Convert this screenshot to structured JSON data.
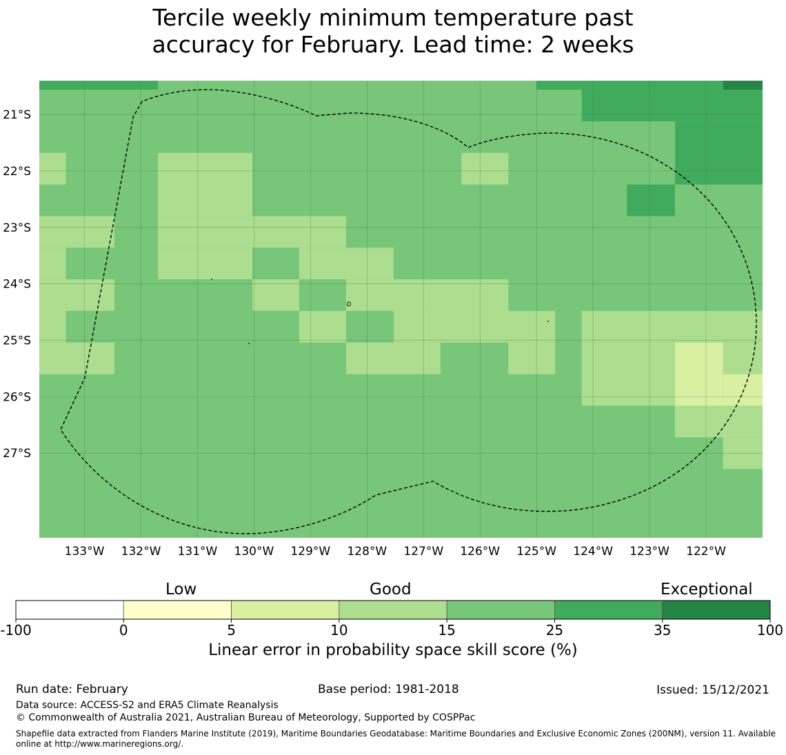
{
  "title": {
    "line1": "Tercile weekly minimum temperature past",
    "line2": "accuracy for February. Lead time: 2 weeks"
  },
  "map": {
    "lon_labels": [
      "133°W",
      "132°W",
      "131°W",
      "130°W",
      "129°W",
      "128°W",
      "127°W",
      "126°W",
      "125°W",
      "124°W",
      "123°W",
      "122°W"
    ],
    "lat_labels": [
      "21°S",
      "22°S",
      "23°S",
      "24°S",
      "25°S",
      "26°S",
      "27°S"
    ],
    "lon_values": [
      -133,
      -132,
      -131,
      -130,
      -129,
      -128,
      -127,
      -126,
      -125,
      -124,
      -123,
      -122
    ],
    "lat_values": [
      -21,
      -22,
      -23,
      -24,
      -25,
      -26,
      -27
    ],
    "lon_range": [
      -133.8,
      -121.0
    ],
    "lat_range": [
      -28.5,
      -20.4
    ],
    "grid": true,
    "boundary": "dashed EEZ outline",
    "level_colors": {
      "0": "#ffffcc",
      "1": "#d9f0a3",
      "2": "#addd8e",
      "3": "#78c679",
      "4": "#41ab5d",
      "5": "#238443"
    },
    "cells": [
      {
        "lon": [
          -133.8,
          -131.7
        ],
        "lat": [
          -20.56,
          -20.4
        ],
        "level": 4
      },
      {
        "lon": [
          -125.0,
          -121.7
        ],
        "lat": [
          -20.56,
          -20.4
        ],
        "level": 4
      },
      {
        "lon": [
          -121.7,
          -121.0
        ],
        "lat": [
          -20.56,
          -20.4
        ],
        "level": 5
      },
      {
        "lon": [
          -124.2,
          -121.0
        ],
        "lat": [
          -21.12,
          -20.56
        ],
        "level": 4
      },
      {
        "lon": [
          -122.55,
          -121.0
        ],
        "lat": [
          -22.24,
          -21.12
        ],
        "level": 4
      },
      {
        "lon": [
          -123.4,
          -122.55
        ],
        "lat": [
          -22.8,
          -22.24
        ],
        "level": 4
      },
      {
        "lon": [
          -133.8,
          -133.33
        ],
        "lat": [
          -22.24,
          -21.68
        ],
        "level": 2
      },
      {
        "lon": [
          -131.7,
          -130.03
        ],
        "lat": [
          -22.8,
          -21.68
        ],
        "level": 2
      },
      {
        "lon": [
          -126.33,
          -125.5
        ],
        "lat": [
          -22.24,
          -21.68
        ],
        "level": 2
      },
      {
        "lon": [
          -133.8,
          -132.47
        ],
        "lat": [
          -23.36,
          -22.8
        ],
        "level": 2
      },
      {
        "lon": [
          -131.7,
          -128.37
        ],
        "lat": [
          -23.36,
          -22.8
        ],
        "level": 2
      },
      {
        "lon": [
          -133.8,
          -133.33
        ],
        "lat": [
          -23.92,
          -23.36
        ],
        "level": 2
      },
      {
        "lon": [
          -131.7,
          -130.03
        ],
        "lat": [
          -23.92,
          -23.36
        ],
        "level": 2
      },
      {
        "lon": [
          -129.2,
          -127.53
        ],
        "lat": [
          -23.92,
          -23.36
        ],
        "level": 2
      },
      {
        "lon": [
          -133.8,
          -132.47
        ],
        "lat": [
          -24.48,
          -23.92
        ],
        "level": 2
      },
      {
        "lon": [
          -130.03,
          -129.2
        ],
        "lat": [
          -24.48,
          -23.92
        ],
        "level": 2
      },
      {
        "lon": [
          -128.37,
          -125.5
        ],
        "lat": [
          -24.48,
          -23.92
        ],
        "level": 2
      },
      {
        "lon": [
          -133.8,
          -133.33
        ],
        "lat": [
          -25.04,
          -24.48
        ],
        "level": 2
      },
      {
        "lon": [
          -129.2,
          -128.37
        ],
        "lat": [
          -25.04,
          -24.48
        ],
        "level": 2
      },
      {
        "lon": [
          -127.53,
          -124.67
        ],
        "lat": [
          -25.04,
          -24.48
        ],
        "level": 2
      },
      {
        "lon": [
          -124.2,
          -121.0
        ],
        "lat": [
          -25.04,
          -24.48
        ],
        "level": 2
      },
      {
        "lon": [
          -133.8,
          -132.47
        ],
        "lat": [
          -25.6,
          -25.04
        ],
        "level": 2
      },
      {
        "lon": [
          -128.37,
          -126.7
        ],
        "lat": [
          -25.6,
          -25.04
        ],
        "level": 2
      },
      {
        "lon": [
          -125.5,
          -124.67
        ],
        "lat": [
          -25.6,
          -25.04
        ],
        "level": 2
      },
      {
        "lon": [
          -124.2,
          -122.55
        ],
        "lat": [
          -26.16,
          -25.04
        ],
        "level": 2
      },
      {
        "lon": [
          -122.55,
          -121.7
        ],
        "lat": [
          -26.16,
          -25.04
        ],
        "level": 1
      },
      {
        "lon": [
          -121.7,
          -121.0
        ],
        "lat": [
          -25.6,
          -25.04
        ],
        "level": 2
      },
      {
        "lon": [
          -121.7,
          -121.0
        ],
        "lat": [
          -26.16,
          -25.6
        ],
        "level": 1
      },
      {
        "lon": [
          -122.55,
          -121.0
        ],
        "lat": [
          -26.72,
          -26.16
        ],
        "level": 2
      },
      {
        "lon": [
          -121.7,
          -121.0
        ],
        "lat": [
          -27.28,
          -26.72
        ],
        "level": 2
      }
    ]
  },
  "colorbar": {
    "categories": [
      "Low",
      "Good",
      "Exceptional"
    ],
    "ticks": [
      "-100",
      "0",
      "5",
      "10",
      "15",
      "25",
      "35",
      "100"
    ],
    "colors": [
      "#ffffff",
      "#ffffcc",
      "#d9f0a3",
      "#addd8e",
      "#78c679",
      "#41ab5d",
      "#238443"
    ],
    "title": "Linear error in probability space skill score (%)"
  },
  "footer": {
    "run_date": "Run date: February",
    "base_period": "Base period: 1981-2018",
    "issued": "Issued: 15/12/2021",
    "data_source": "Data source: ACCESS-S2 and ERA5 Climate Reanalysis",
    "copyright": "© Commonwealth of Australia 2021, Australian Bureau of Meteorology, Supported by COSPPac",
    "shapefile_line1": "Shapefile data extracted from Flanders Marine Institute (2019), Maritime Boundaries Geodatabase: Maritime Boundaries and Exclusive Economic Zones (200NM), version 11. Available",
    "shapefile_line2": "online at http://www.marineregions.org/."
  }
}
